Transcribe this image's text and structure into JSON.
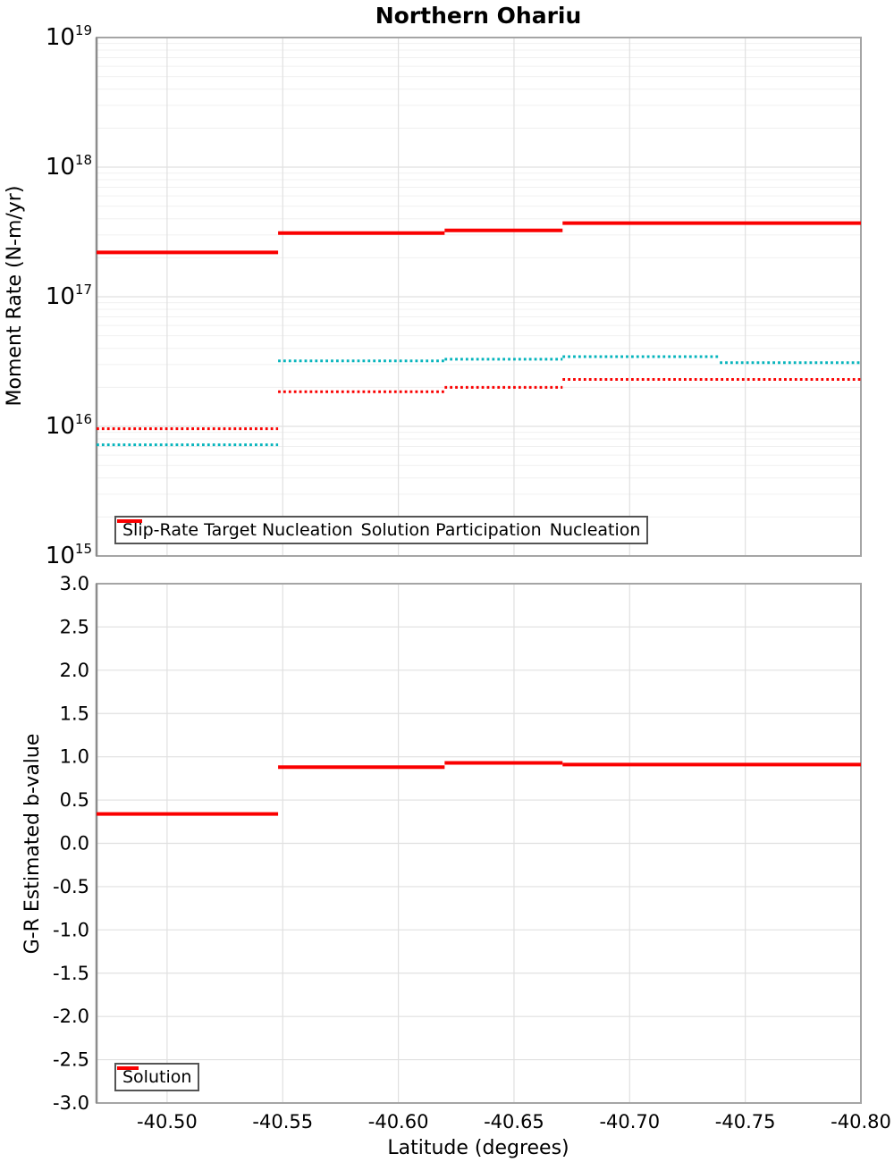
{
  "colors": {
    "red": "#fa0000",
    "cyan": "#06b4bc",
    "grid_major": "#e0e0e0",
    "grid_minor": "#f0f0f0",
    "spine": "#a5a5a5",
    "spine_left": "#8c8c8c",
    "legend_border": "#545454",
    "text": "#000000",
    "background": "#ffffff"
  },
  "xticks": {
    "values": [
      -40.5,
      -40.55,
      -40.6,
      -40.65,
      -40.7,
      -40.75,
      -40.8
    ],
    "labels": [
      "-40.50",
      "-40.55",
      "-40.60",
      "-40.65",
      "-40.70",
      "-40.75",
      "-40.80"
    ]
  },
  "chart_data": [
    {
      "type": "line",
      "subtype": "step",
      "title": "Northern Ohariu",
      "ylabel": "Moment Rate (N-m/yr)",
      "yscale": "log",
      "ylim": [
        1000000000000000.0,
        1e+19
      ],
      "ytick_exponents": [
        19,
        18,
        17,
        16,
        15
      ],
      "xlim": [
        -40.4695,
        -40.8
      ],
      "grid": true,
      "legend_position": "lower left",
      "series": [
        {
          "name": "Slip-Rate Target Nucleation",
          "color": "cyan",
          "style": "dotted",
          "width": 3,
          "edges": [
            -40.4695,
            -40.548,
            -40.62,
            -40.671,
            -40.739,
            -40.8
          ],
          "values": [
            7200000000000000.0,
            3.2e+16,
            3.3e+16,
            3.45e+16,
            3.1e+16
          ]
        },
        {
          "name": "Solution Participation",
          "color": "red",
          "style": "solid",
          "width": 4,
          "edges": [
            -40.4695,
            -40.548,
            -40.62,
            -40.671,
            -40.8
          ],
          "values": [
            2.2e+17,
            3.1e+17,
            3.25e+17,
            3.7e+17
          ]
        },
        {
          "name": "Nucleation",
          "color": "red",
          "style": "dotted",
          "width": 3,
          "edges": [
            -40.4695,
            -40.548,
            -40.62,
            -40.671,
            -40.8
          ],
          "values": [
            9600000000000000.0,
            1.85e+16,
            2e+16,
            2.3e+16
          ]
        }
      ]
    },
    {
      "type": "line",
      "subtype": "step",
      "ylabel": "G-R Estimated b-value",
      "xlabel": "Latitude (degrees)",
      "yscale": "linear",
      "ylim": [
        -3.0,
        3.0
      ],
      "ytick_step": 0.5,
      "ytick_labels": [
        "3.0",
        "2.5",
        "2.0",
        "1.5",
        "1.0",
        "0.5",
        "0.0",
        "-0.5",
        "-1.0",
        "-1.5",
        "-2.0",
        "-2.5",
        "-3.0"
      ],
      "xlim": [
        -40.4695,
        -40.8
      ],
      "grid": true,
      "legend_position": "lower left",
      "series": [
        {
          "name": "Solution",
          "color": "red",
          "style": "solid",
          "width": 4,
          "edges": [
            -40.4695,
            -40.548,
            -40.62,
            -40.671,
            -40.8
          ],
          "values": [
            0.34,
            0.88,
            0.93,
            0.91
          ]
        }
      ]
    }
  ]
}
